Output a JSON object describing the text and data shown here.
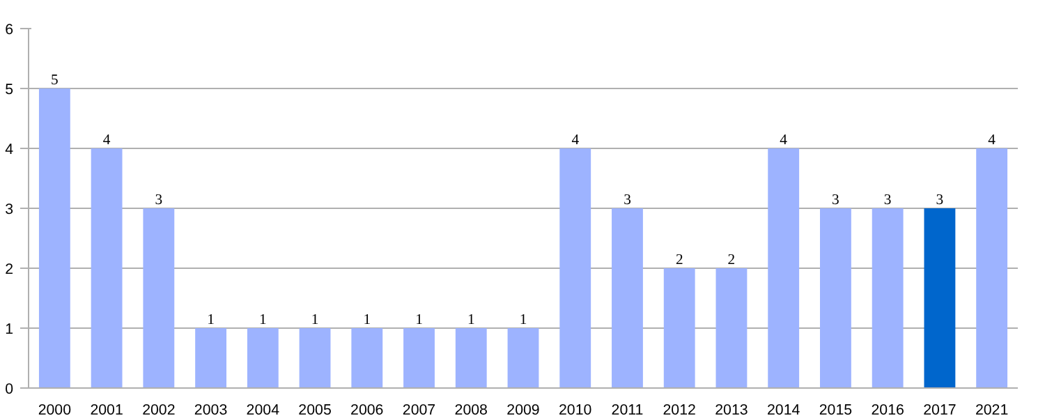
{
  "chart_data": {
    "type": "bar",
    "categories": [
      "2000",
      "2001",
      "2002",
      "2003",
      "2004",
      "2005",
      "2006",
      "2007",
      "2008",
      "2009",
      "2010",
      "2011",
      "2012",
      "2013",
      "2014",
      "2015",
      "2016",
      "2017",
      "2021"
    ],
    "values": [
      5,
      4,
      3,
      1,
      1,
      1,
      1,
      1,
      1,
      1,
      4,
      3,
      2,
      2,
      4,
      3,
      3,
      3,
      4
    ],
    "colors": [
      "#9db3ff",
      "#9db3ff",
      "#9db3ff",
      "#9db3ff",
      "#9db3ff",
      "#9db3ff",
      "#9db3ff",
      "#9db3ff",
      "#9db3ff",
      "#9db3ff",
      "#9db3ff",
      "#9db3ff",
      "#9db3ff",
      "#9db3ff",
      "#9db3ff",
      "#9db3ff",
      "#9db3ff",
      "#0066cc",
      "#9db3ff"
    ],
    "ylim": [
      0,
      6
    ],
    "yticks": [
      0,
      1,
      2,
      3,
      4,
      5,
      6
    ],
    "grid": "y",
    "data_labels": true
  }
}
